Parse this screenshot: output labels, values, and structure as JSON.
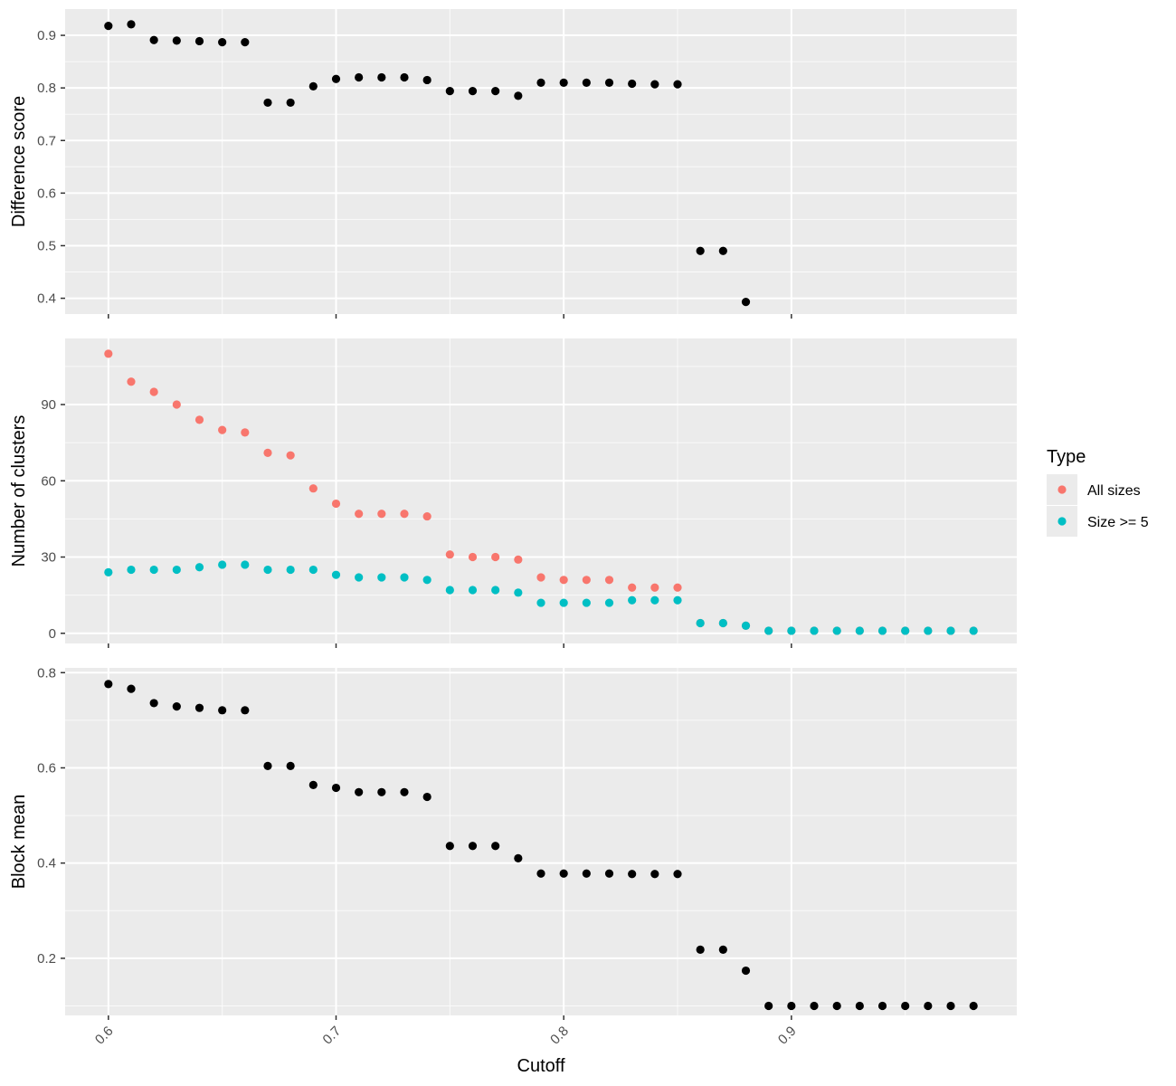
{
  "chart_data": [
    {
      "type": "scatter",
      "ylabel": "Difference score",
      "ylim": [
        0.37,
        0.95
      ],
      "yticks": [
        0.4,
        0.5,
        0.6,
        0.7,
        0.8,
        0.9
      ],
      "ytick_labels": [
        "0.4",
        "0.5",
        "0.6",
        "0.7",
        "0.8",
        "0.9"
      ],
      "series": [
        {
          "color": "#000000",
          "x": [
            0.6,
            0.61,
            0.62,
            0.63,
            0.64,
            0.65,
            0.66,
            0.67,
            0.68,
            0.69,
            0.7,
            0.71,
            0.72,
            0.73,
            0.74,
            0.75,
            0.76,
            0.77,
            0.78,
            0.79,
            0.8,
            0.81,
            0.82,
            0.83,
            0.84,
            0.85,
            0.86,
            0.87,
            0.88
          ],
          "y": [
            0.918,
            0.921,
            0.891,
            0.89,
            0.889,
            0.887,
            0.887,
            0.772,
            0.772,
            0.803,
            0.817,
            0.82,
            0.82,
            0.82,
            0.815,
            0.794,
            0.794,
            0.794,
            0.785,
            0.81,
            0.81,
            0.81,
            0.81,
            0.808,
            0.807,
            0.807,
            0.49,
            0.49,
            0.393
          ]
        }
      ]
    },
    {
      "type": "scatter",
      "ylabel": "Number of clusters",
      "ylim": [
        -4,
        116
      ],
      "yticks": [
        0,
        30,
        60,
        90
      ],
      "ytick_labels": [
        "0",
        "30",
        "60",
        "90"
      ],
      "legend": {
        "title": "Type",
        "position": "right"
      },
      "series": [
        {
          "name": "All sizes",
          "color": "#F8766D",
          "x": [
            0.6,
            0.61,
            0.62,
            0.63,
            0.64,
            0.65,
            0.66,
            0.67,
            0.68,
            0.69,
            0.7,
            0.71,
            0.72,
            0.73,
            0.74,
            0.75,
            0.76,
            0.77,
            0.78,
            0.79,
            0.8,
            0.81,
            0.82,
            0.83,
            0.84,
            0.85,
            0.86,
            0.87,
            0.88,
            0.89,
            0.9,
            0.91,
            0.92,
            0.93,
            0.94,
            0.95,
            0.96,
            0.97,
            0.98
          ],
          "y": [
            110,
            99,
            95,
            90,
            84,
            80,
            79,
            71,
            70,
            57,
            51,
            47,
            47,
            47,
            46,
            31,
            30,
            30,
            29,
            22,
            21,
            21,
            21,
            18,
            18,
            18,
            4,
            4,
            3,
            1,
            1,
            1,
            1,
            1,
            1,
            1,
            1,
            1,
            1
          ]
        },
        {
          "name": "Size >= 5",
          "color": "#00BFC4",
          "x": [
            0.6,
            0.61,
            0.62,
            0.63,
            0.64,
            0.65,
            0.66,
            0.67,
            0.68,
            0.69,
            0.7,
            0.71,
            0.72,
            0.73,
            0.74,
            0.75,
            0.76,
            0.77,
            0.78,
            0.79,
            0.8,
            0.81,
            0.82,
            0.83,
            0.84,
            0.85,
            0.86,
            0.87,
            0.88,
            0.89,
            0.9,
            0.91,
            0.92,
            0.93,
            0.94,
            0.95,
            0.96,
            0.97,
            0.98
          ],
          "y": [
            24,
            25,
            25,
            25,
            26,
            27,
            27,
            25,
            25,
            25,
            23,
            22,
            22,
            22,
            21,
            17,
            17,
            17,
            16,
            12,
            12,
            12,
            12,
            13,
            13,
            13,
            4,
            4,
            3,
            1,
            1,
            1,
            1,
            1,
            1,
            1,
            1,
            1,
            1
          ]
        }
      ]
    },
    {
      "type": "scatter",
      "ylabel": "Block mean",
      "xlabel": "Cutoff",
      "ylim": [
        0.08,
        0.81
      ],
      "yticks": [
        0.2,
        0.4,
        0.6,
        0.8
      ],
      "ytick_labels": [
        "0.2",
        "0.4",
        "0.6",
        "0.8"
      ],
      "series": [
        {
          "color": "#000000",
          "x": [
            0.6,
            0.61,
            0.62,
            0.63,
            0.64,
            0.65,
            0.66,
            0.67,
            0.68,
            0.69,
            0.7,
            0.71,
            0.72,
            0.73,
            0.74,
            0.75,
            0.76,
            0.77,
            0.78,
            0.79,
            0.8,
            0.81,
            0.82,
            0.83,
            0.84,
            0.85,
            0.86,
            0.87,
            0.88,
            0.89,
            0.9,
            0.91,
            0.92,
            0.93,
            0.94,
            0.95,
            0.96,
            0.97,
            0.98
          ],
          "y": [
            0.776,
            0.766,
            0.736,
            0.729,
            0.726,
            0.721,
            0.721,
            0.604,
            0.604,
            0.564,
            0.558,
            0.549,
            0.549,
            0.549,
            0.539,
            0.436,
            0.436,
            0.436,
            0.41,
            0.378,
            0.378,
            0.378,
            0.378,
            0.377,
            0.377,
            0.377,
            0.218,
            0.218,
            0.174,
            0.1,
            0.1,
            0.1,
            0.1,
            0.1,
            0.1,
            0.1,
            0.1,
            0.1,
            0.1
          ]
        }
      ]
    }
  ],
  "x_axis": {
    "label": "Cutoff",
    "xlim": [
      0.581,
      0.999
    ],
    "ticks": [
      0.6,
      0.7,
      0.8,
      0.9
    ],
    "tick_labels": [
      "0.6",
      "0.7",
      "0.8",
      "0.9"
    ]
  },
  "legend": {
    "title": "Type",
    "entries": [
      "All sizes",
      "Size >= 5"
    ],
    "colors": [
      "#F8766D",
      "#00BFC4"
    ]
  }
}
